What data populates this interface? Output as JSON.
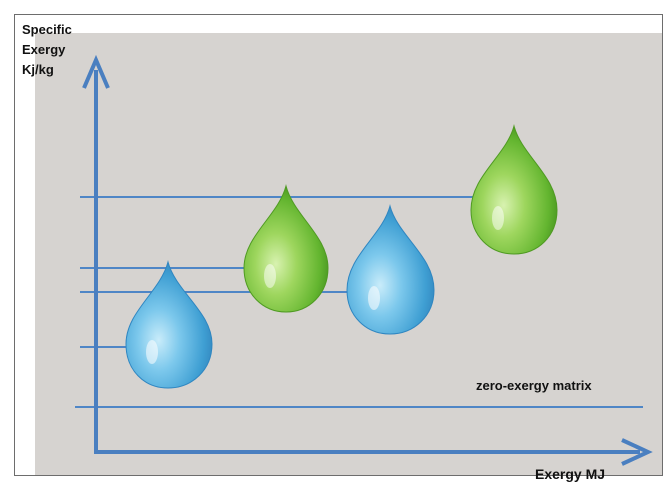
{
  "diagram": {
    "y_axis_label": {
      "line1": "Specific",
      "line2": "Exergy",
      "line3": "Kj/kg"
    },
    "x_axis_label": "Exergy MJ",
    "matrix_label": "zero-exergy matrix",
    "colors": {
      "background": "#d6d3d0",
      "axis": "#4a7fc0",
      "level_line": "#4f86c6",
      "blue_drop": "#4aa9d9",
      "green_drop": "#6fbf3b"
    }
  }
}
